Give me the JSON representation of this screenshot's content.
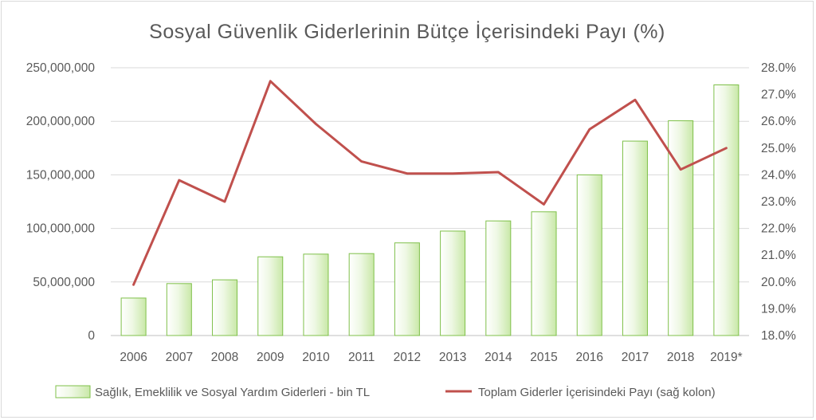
{
  "chart_data": {
    "type": "bar",
    "title": "Sosyal  Güvenlik  Giderlerinin  Bütçe  İçerisindeki  Payı  (%)",
    "categories": [
      "2006",
      "2007",
      "2008",
      "2009",
      "2010",
      "2011",
      "2012",
      "2013",
      "2014",
      "2015",
      "2016",
      "2017",
      "2018",
      "2019*"
    ],
    "series": [
      {
        "name": "Sağlık, Emeklilik ve Sosyal Yardım Giderleri - bin TL",
        "type": "bar",
        "axis": "left",
        "color": "#70ad47",
        "values": [
          35000000,
          48500000,
          52000000,
          73500000,
          76000000,
          76500000,
          86500000,
          97500000,
          107000000,
          115500000,
          150000000,
          181500000,
          200500000,
          234000000
        ]
      },
      {
        "name": "Toplam Giderler İçerisindeki Payı (sağ kolon)",
        "type": "line",
        "axis": "right",
        "color": "#c0504d",
        "values": [
          19.9,
          23.8,
          23.0,
          27.5,
          25.9,
          24.5,
          24.05,
          24.05,
          24.1,
          22.9,
          25.7,
          26.8,
          24.2,
          25.0
        ]
      }
    ],
    "y_left": {
      "ylim": [
        0,
        250000000
      ],
      "ticks": [
        "0",
        "50,000,000",
        "100,000,000",
        "150,000,000",
        "200,000,000",
        "250,000,000"
      ],
      "tick_values": [
        0,
        50000000,
        100000000,
        150000000,
        200000000,
        250000000
      ]
    },
    "y_right": {
      "ylim": [
        18.0,
        28.0
      ],
      "ticks": [
        "18.0%",
        "19.0%",
        "20.0%",
        "21.0%",
        "22.0%",
        "23.0%",
        "24.0%",
        "25.0%",
        "26.0%",
        "27.0%",
        "28.0%"
      ],
      "tick_values": [
        18,
        19,
        20,
        21,
        22,
        23,
        24,
        25,
        26,
        27,
        28
      ]
    },
    "grid": true,
    "legend_position": "bottom"
  }
}
